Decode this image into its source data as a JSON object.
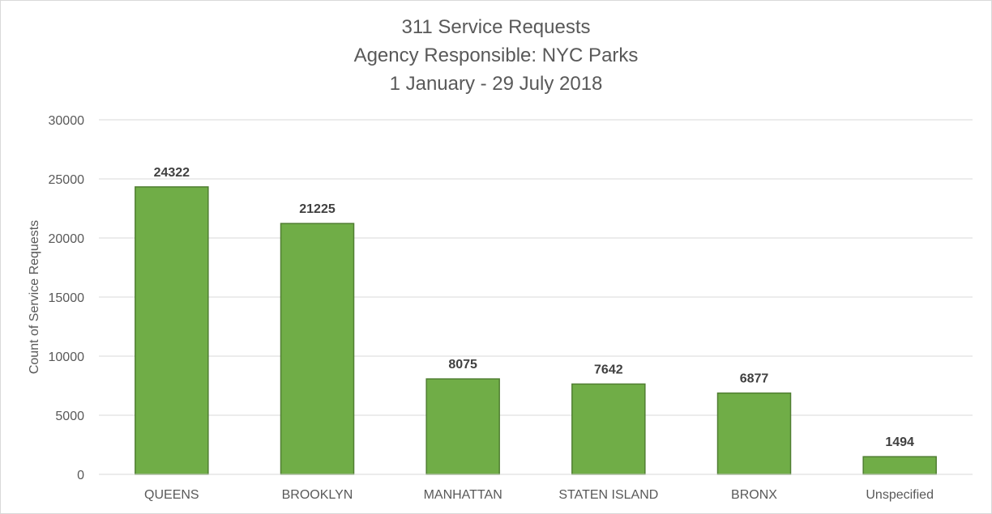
{
  "chart_data": {
    "type": "bar",
    "title_lines": [
      "311 Service Requests",
      "Agency Responsible:  NYC Parks",
      "1 January - 29 July 2018"
    ],
    "xlabel": "",
    "ylabel": "Count of Service Requests",
    "categories": [
      "QUEENS",
      "BROOKLYN",
      "MANHATTAN",
      "STATEN ISLAND",
      "BRONX",
      "Unspecified"
    ],
    "values": [
      24322,
      21225,
      8075,
      7642,
      6877,
      1494
    ],
    "ylim": [
      0,
      30000
    ],
    "yticks": [
      0,
      5000,
      10000,
      15000,
      20000,
      25000,
      30000
    ],
    "grid": true,
    "legend": "none",
    "colors": {
      "bar_fill": "#70ad47",
      "bar_stroke": "#507e32",
      "grid": "#d9d9d9"
    }
  }
}
